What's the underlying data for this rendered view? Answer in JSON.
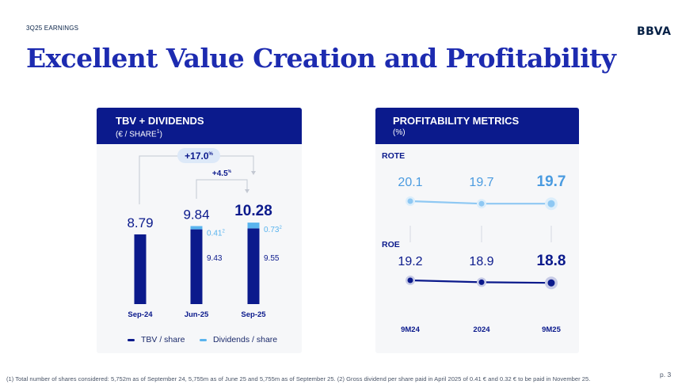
{
  "header": {
    "eyebrow": "3Q25 EARNINGS",
    "logo": "BBVA",
    "title": "Excellent Value Creation and Profitability"
  },
  "tbv_card": {
    "title": "TBV + DIVIDENDS",
    "subtitle_prefix": "(€ / SHARE",
    "subtitle_sup": "1",
    "subtitle_suffix": ")",
    "growth_total": "+17.0",
    "growth_total_sup": "%",
    "growth_mid": "+4.5",
    "growth_mid_sup": "%",
    "legend_tbv": "TBV / share",
    "legend_div": "Dividends / share"
  },
  "profit_card": {
    "title": "PROFITABILITY METRICS",
    "subtitle": "(%)"
  },
  "chart_data": [
    {
      "type": "bar",
      "stacked": true,
      "categories": [
        "Sep-24",
        "Jun-25",
        "Sep-25"
      ],
      "totals": [
        "8.79",
        "9.84",
        "10.28"
      ],
      "series": [
        {
          "name": "TBV / share",
          "values": [
            8.79,
            9.43,
            9.55
          ],
          "labels": [
            "",
            "9.43",
            "9.55"
          ]
        },
        {
          "name": "Dividends / share",
          "values": [
            0,
            0.41,
            0.73
          ],
          "labels": [
            "",
            "0.41",
            "0.73"
          ],
          "label_sup": "2"
        }
      ],
      "colors": {
        "tbv": "#0b1a8c",
        "div": "#5ab4ee"
      }
    },
    {
      "type": "line",
      "categories": [
        "9M24",
        "2024",
        "9M25"
      ],
      "series": [
        {
          "name": "ROTE",
          "values": [
            20.1,
            19.7,
            19.7
          ],
          "labels": [
            "20.1",
            "19.7",
            "19.7"
          ],
          "color": "#8ec8f3",
          "label_color": "#4a9be0"
        },
        {
          "name": "ROE",
          "values": [
            19.2,
            18.9,
            18.8
          ],
          "labels": [
            "19.2",
            "18.9",
            "18.8"
          ],
          "color": "#0b1a8c",
          "label_color": "#0b1a8c"
        }
      ]
    }
  ],
  "footer": {
    "footnote": "(1) Total number of shares considered: 5,752m as of September 24, 5,755m as of June 25 and 5,755m as of September 25. (2) Gross dividend per share paid in April 2025 of 0.41 € and 0.32 € to be paid in November 25.",
    "page": "p. 3"
  }
}
